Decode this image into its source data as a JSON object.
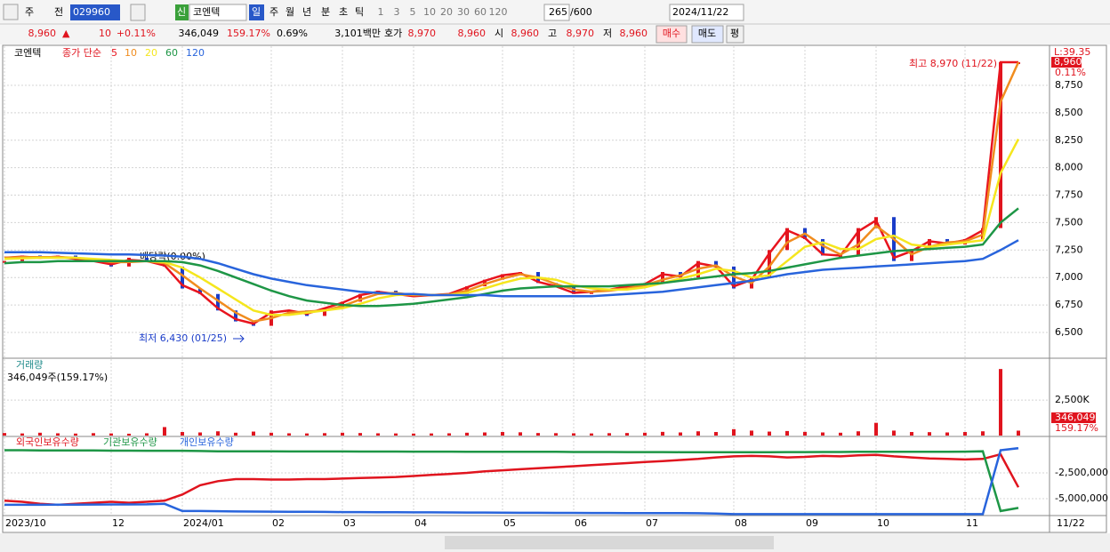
{
  "toolbar": {
    "items": [
      "주",
      "전"
    ],
    "code": "029960",
    "name_tag": "신",
    "name": "코엔텍",
    "periods": [
      "일",
      "주",
      "월",
      "년",
      "분",
      "초",
      "틱"
    ],
    "intervals": [
      "1",
      "3",
      "5",
      "10",
      "20",
      "30",
      "60",
      "120"
    ],
    "count": "265",
    "max": "/600",
    "date": "2024/11/22"
  },
  "info_bar": {
    "price": "8,960",
    "arrow": "▲",
    "change": "10",
    "change_pct": "+0.11%",
    "volume": "346,049",
    "volume_pct": "159.17%",
    "turnover": "0.69%",
    "amount": "3,101백만",
    "quote_label": "호가",
    "ask": "8,970",
    "bid": "8,960",
    "open_label": "시",
    "open": "8,960",
    "high_label": "고",
    "high": "8,970",
    "low_label": "저",
    "low": "8,960",
    "buy": "매수",
    "sell": "매도",
    "eval": "평"
  },
  "chart_data": [
    {
      "type": "line",
      "symbol": "코엔텍",
      "legend_title": "종가 단순",
      "corner_label": "L:39.35",
      "price_tag": "8,960",
      "change_tag": "0.11%",
      "annotations": {
        "high": "최고 8,970 (11/22)",
        "low": "최저 6,430 (01/25)",
        "dividend": "배당락(0.00%)"
      },
      "close": [
        7150,
        7200,
        7180,
        7200,
        7170,
        7150,
        7100,
        7180,
        7150,
        7100,
        6900,
        6850,
        6700,
        6600,
        6560,
        6700,
        6700,
        6650,
        6720,
        6780,
        6850,
        6880,
        6850,
        6830,
        6850,
        6850,
        6920,
        6980,
        7030,
        7050,
        6950,
        6920,
        6850,
        6880,
        6900,
        6930,
        6950,
        7050,
        7000,
        7150,
        7100,
        6900,
        7000,
        7250,
        7450,
        7350,
        7200,
        7200,
        7450,
        7550,
        7150,
        7250,
        7350,
        7300,
        7350,
        7450,
        8960,
        8960
      ],
      "up_color": "#e0141e",
      "down_color": "#1a3cc8",
      "series": [
        {
          "name": "5",
          "color": "#e8141e",
          "values": [
            7180,
            7190,
            7180,
            7190,
            7170,
            7150,
            7120,
            7160,
            7150,
            7110,
            6930,
            6860,
            6720,
            6620,
            6580,
            6680,
            6700,
            6670,
            6720,
            6770,
            6840,
            6870,
            6850,
            6830,
            6840,
            6850,
            6910,
            6970,
            7020,
            7040,
            6960,
            6920,
            6860,
            6870,
            6890,
            6920,
            6940,
            7030,
            7010,
            7130,
            7100,
            6920,
            6980,
            7220,
            7430,
            7360,
            7210,
            7200,
            7420,
            7520,
            7180,
            7240,
            7330,
            7310,
            7340,
            7430,
            8960,
            8960
          ]
        },
        {
          "name": "10",
          "color": "#f08c1e",
          "values": [
            7180,
            7185,
            7185,
            7185,
            7180,
            7160,
            7140,
            7140,
            7150,
            7130,
            7020,
            6900,
            6790,
            6680,
            6600,
            6630,
            6680,
            6690,
            6700,
            6740,
            6800,
            6850,
            6860,
            6840,
            6840,
            6845,
            6880,
            6940,
            6990,
            7030,
            7000,
            6940,
            6890,
            6870,
            6880,
            6900,
            6930,
            6980,
            7020,
            7080,
            7110,
            7010,
            6950,
            7100,
            7320,
            7400,
            7290,
            7210,
            7300,
            7470,
            7350,
            7210,
            7280,
            7320,
            7330,
            7390,
            8600,
            8960
          ]
        },
        {
          "name": "20",
          "color": "#f5e61e",
          "values": [
            7170,
            7175,
            7180,
            7180,
            7180,
            7170,
            7160,
            7150,
            7150,
            7140,
            7090,
            7000,
            6900,
            6800,
            6700,
            6660,
            6660,
            6680,
            6700,
            6720,
            6760,
            6810,
            6840,
            6850,
            6840,
            6840,
            6860,
            6900,
            6950,
            6990,
            7000,
            6980,
            6930,
            6900,
            6890,
            6890,
            6910,
            6950,
            6990,
            7030,
            7080,
            7060,
            7000,
            7020,
            7150,
            7280,
            7320,
            7260,
            7260,
            7350,
            7380,
            7300,
            7280,
            7300,
            7320,
            7340,
            7950,
            8260
          ]
        },
        {
          "name": "60",
          "color": "#1e9646",
          "values": [
            7130,
            7140,
            7140,
            7150,
            7150,
            7150,
            7150,
            7150,
            7150,
            7150,
            7140,
            7110,
            7060,
            7000,
            6940,
            6880,
            6830,
            6790,
            6770,
            6750,
            6740,
            6740,
            6750,
            6760,
            6780,
            6800,
            6820,
            6850,
            6880,
            6900,
            6910,
            6920,
            6920,
            6920,
            6920,
            6930,
            6940,
            6950,
            6970,
            6990,
            7010,
            7030,
            7040,
            7060,
            7090,
            7120,
            7150,
            7180,
            7200,
            7220,
            7240,
            7250,
            7260,
            7270,
            7280,
            7300,
            7500,
            7630
          ]
        },
        {
          "name": "120",
          "color": "#2864dc",
          "values": [
            7230,
            7230,
            7230,
            7225,
            7220,
            7215,
            7210,
            7210,
            7205,
            7200,
            7190,
            7170,
            7130,
            7080,
            7030,
            6990,
            6960,
            6930,
            6910,
            6890,
            6870,
            6860,
            6850,
            6850,
            6840,
            6840,
            6840,
            6840,
            6830,
            6830,
            6830,
            6830,
            6830,
            6830,
            6840,
            6850,
            6860,
            6870,
            6890,
            6910,
            6930,
            6950,
            6970,
            7000,
            7030,
            7050,
            7070,
            7080,
            7090,
            7100,
            7110,
            7120,
            7130,
            7140,
            7150,
            7170,
            7250,
            7340
          ]
        }
      ],
      "ylim": [
        6265,
        9106
      ],
      "yticks": [
        {
          "value": 6500,
          "label": "6,500"
        },
        {
          "value": 6750,
          "label": "6,750"
        },
        {
          "value": 7000,
          "label": "7,000"
        },
        {
          "value": 7250,
          "label": "7,250"
        },
        {
          "value": 7500,
          "label": "7,500"
        },
        {
          "value": 7750,
          "label": "7,750"
        },
        {
          "value": 8000,
          "label": "8,000"
        },
        {
          "value": 8250,
          "label": "8,250"
        },
        {
          "value": 8500,
          "label": "8,500"
        },
        {
          "value": 8750,
          "label": "8,750"
        }
      ],
      "grid": true
    },
    {
      "type": "bar",
      "title": "거래량",
      "subtitle": "346,049주(159.17%)",
      "tags": [
        "346,049",
        "159.17%"
      ],
      "color": "#e0141e",
      "values": [
        180000,
        150000,
        200000,
        160000,
        140000,
        170000,
        150000,
        130000,
        160000,
        600000,
        250000,
        220000,
        300000,
        200000,
        280000,
        200000,
        160000,
        150000,
        170000,
        200000,
        180000,
        160000,
        150000,
        140000,
        150000,
        160000,
        200000,
        220000,
        250000,
        230000,
        180000,
        170000,
        160000,
        150000,
        170000,
        180000,
        200000,
        260000,
        220000,
        300000,
        250000,
        450000,
        350000,
        280000,
        320000,
        260000,
        220000,
        200000,
        300000,
        900000,
        350000,
        250000,
        240000,
        220000,
        250000,
        300000,
        4700000,
        346049
      ],
      "ylim": [
        0,
        5400000
      ],
      "yticks": [
        {
          "value": 2500000,
          "label": "2,500K"
        }
      ],
      "grid": true
    },
    {
      "type": "line",
      "last_date_label": "11/22",
      "categories": [
        "2023/10",
        null,
        null,
        null,
        null,
        null,
        "12",
        null,
        null,
        null,
        "2024/01",
        null,
        null,
        null,
        null,
        "02",
        null,
        null,
        null,
        "03",
        null,
        null,
        null,
        "04",
        null,
        null,
        null,
        null,
        "05",
        null,
        null,
        null,
        "06",
        null,
        null,
        null,
        "07",
        null,
        null,
        null,
        null,
        "08",
        null,
        null,
        null,
        "09",
        null,
        null,
        null,
        "10",
        null,
        null,
        null,
        null,
        "11",
        null,
        null,
        null
      ],
      "series": [
        {
          "name": "외국인보유수량",
          "color": "#e0141e",
          "values": [
            -5200000,
            -5300000,
            -5500000,
            -5600000,
            -5500000,
            -5400000,
            -5300000,
            -5400000,
            -5300000,
            -5200000,
            -4600000,
            -3700000,
            -3300000,
            -3100000,
            -3100000,
            -3150000,
            -3150000,
            -3100000,
            -3100000,
            -3050000,
            -3000000,
            -2950000,
            -2900000,
            -2800000,
            -2700000,
            -2600000,
            -2500000,
            -2350000,
            -2250000,
            -2150000,
            -2050000,
            -1950000,
            -1850000,
            -1750000,
            -1650000,
            -1550000,
            -1450000,
            -1350000,
            -1250000,
            -1150000,
            -1000000,
            -900000,
            -850000,
            -900000,
            -1000000,
            -950000,
            -850000,
            -900000,
            -800000,
            -750000,
            -900000,
            -1000000,
            -1100000,
            -1150000,
            -1200000,
            -1150000,
            -700000,
            -3900000
          ]
        },
        {
          "name": "기관보유수량",
          "color": "#1e9646",
          "values": [
            -300000,
            -300000,
            -320000,
            -320000,
            -330000,
            -330000,
            -340000,
            -340000,
            -350000,
            -350000,
            -350000,
            -380000,
            -400000,
            -400000,
            -400000,
            -400000,
            -420000,
            -420000,
            -420000,
            -420000,
            -430000,
            -430000,
            -430000,
            -440000,
            -440000,
            -440000,
            -450000,
            -450000,
            -450000,
            -460000,
            -460000,
            -460000,
            -470000,
            -470000,
            -470000,
            -480000,
            -480000,
            -480000,
            -490000,
            -490000,
            -490000,
            -500000,
            -500000,
            -500000,
            -480000,
            -480000,
            -470000,
            -470000,
            -460000,
            -460000,
            -460000,
            -450000,
            -450000,
            -450000,
            -440000,
            -400000,
            -6200000,
            -5900000
          ]
        },
        {
          "name": "개인보유수량",
          "color": "#2864dc",
          "values": [
            -5600000,
            -5600000,
            -5600000,
            -5580000,
            -5580000,
            -5570000,
            -5560000,
            -5560000,
            -5550000,
            -5500000,
            -6200000,
            -6200000,
            -6220000,
            -6240000,
            -6250000,
            -6260000,
            -6270000,
            -6280000,
            -6290000,
            -6300000,
            -6300000,
            -6310000,
            -6320000,
            -6330000,
            -6330000,
            -6340000,
            -6350000,
            -6350000,
            -6360000,
            -6370000,
            -6370000,
            -6380000,
            -6380000,
            -6390000,
            -6390000,
            -6400000,
            -6400000,
            -6410000,
            -6410000,
            -6420000,
            -6450000,
            -6500000,
            -6500000,
            -6500000,
            -6500000,
            -6500000,
            -6500000,
            -6500000,
            -6500000,
            -6500000,
            -6500000,
            -6500000,
            -6500000,
            -6500000,
            -6500000,
            -6500000,
            -300000,
            -100000
          ]
        }
      ],
      "ylim": [
        -6640000,
        950000
      ],
      "yticks": [
        {
          "value": -2500000,
          "label": "-2,500,000"
        },
        {
          "value": -5000000,
          "label": "-5,000,000"
        }
      ],
      "grid": true
    }
  ]
}
